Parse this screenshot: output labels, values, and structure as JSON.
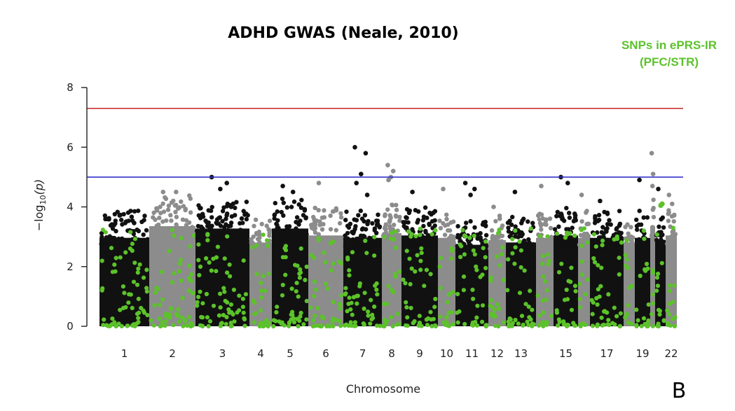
{
  "chart_data": {
    "type": "scatter",
    "title": "ADHD GWAS (Neale, 2010)",
    "xlabel": "Chromosome",
    "ylabel_parts": {
      "prefix": "−log",
      "sub": "10",
      "suffix": "(p)"
    },
    "ylim": [
      0,
      8
    ],
    "yticks": [
      0,
      2,
      4,
      6,
      8
    ],
    "grid": false,
    "legend": {
      "label_line1": "SNPs in ePRS-IR",
      "label_line2": "(PFC/STR)",
      "placement": "top-right"
    },
    "panel_label": "B",
    "thresholds": [
      {
        "name": "genome-wide significance",
        "value": 7.3,
        "color": "#cc3333"
      },
      {
        "name": "suggestive",
        "value": 5.0,
        "color": "#3333cc"
      }
    ],
    "colors": {
      "odd": "#111111",
      "even": "#8c8c8c",
      "highlight": "#5cc22a"
    },
    "chromosomes": [
      {
        "chr": "1",
        "label": "1",
        "peak": 3.8,
        "top": []
      },
      {
        "chr": "2",
        "label": "2",
        "peak": 4.3,
        "top": [
          4.5,
          4.5
        ]
      },
      {
        "chr": "3",
        "label": "3",
        "peak": 4.2,
        "top": [
          5.0,
          4.8,
          4.6
        ]
      },
      {
        "chr": "4",
        "label": "4",
        "peak": 3.6,
        "top": []
      },
      {
        "chr": "5",
        "label": "5",
        "peak": 4.2,
        "top": [
          4.7,
          4.5
        ]
      },
      {
        "chr": "6",
        "label": "6",
        "peak": 3.9,
        "top": [
          4.8
        ]
      },
      {
        "chr": "7",
        "label": "7",
        "peak": 3.8,
        "top": [
          6.0,
          5.8,
          5.1,
          4.8,
          4.4
        ]
      },
      {
        "chr": "8",
        "label": "8",
        "peak": 4.0,
        "top": [
          5.4,
          5.2,
          5.0,
          4.9
        ]
      },
      {
        "chr": "9",
        "label": "9",
        "peak": 3.9,
        "top": [
          4.5
        ]
      },
      {
        "chr": "10",
        "label": "10",
        "peak": 3.8,
        "top": [
          4.6
        ]
      },
      {
        "chr": "11",
        "label": "11",
        "peak": 3.5,
        "top": [
          4.8,
          4.6,
          4.4
        ]
      },
      {
        "chr": "12",
        "label": "12",
        "peak": 3.7,
        "top": [
          4.0
        ]
      },
      {
        "chr": "13",
        "label": "13",
        "peak": 3.6,
        "top": [
          4.5
        ]
      },
      {
        "chr": "14",
        "label": "",
        "peak": 3.8,
        "top": [
          4.7
        ]
      },
      {
        "chr": "15",
        "label": "15",
        "peak": 3.9,
        "top": [
          5.0,
          4.8
        ]
      },
      {
        "chr": "16",
        "label": "",
        "peak": 3.8,
        "top": [
          4.4
        ]
      },
      {
        "chr": "17",
        "label": "17",
        "peak": 3.8,
        "top": [
          4.2
        ]
      },
      {
        "chr": "18",
        "label": "",
        "peak": 3.6,
        "top": []
      },
      {
        "chr": "19",
        "label": "19",
        "peak": 3.8,
        "top": [
          4.9
        ]
      },
      {
        "chr": "20",
        "label": "",
        "peak": 4.3,
        "top": [
          5.8,
          5.1,
          4.7
        ]
      },
      {
        "chr": "21",
        "label": "",
        "peak": 3.7,
        "top": [
          4.6
        ]
      },
      {
        "chr": "22",
        "label": "22",
        "peak": 3.9,
        "top": [
          4.4,
          4.1
        ]
      }
    ]
  }
}
